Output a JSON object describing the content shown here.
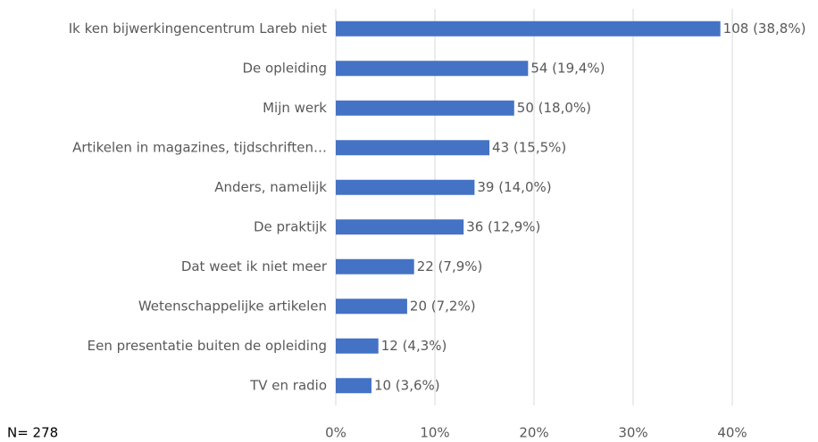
{
  "chart_data": {
    "type": "bar",
    "orientation": "horizontal",
    "categories": [
      "Ik ken bijwerkingencentrum Lareb niet",
      "De opleiding",
      "Mijn werk",
      "Artikelen in magazines, tijdschriften…",
      "Anders, namelijk",
      "De praktijk",
      "Dat weet ik niet meer",
      "Wetenschappelijke artikelen",
      "Een presentatie buiten de opleiding",
      "TV en radio"
    ],
    "values": [
      38.8,
      19.4,
      18.0,
      15.5,
      14.0,
      12.9,
      7.9,
      7.2,
      4.3,
      3.6
    ],
    "value_labels": [
      "108 (38,8%)",
      "54 (19,4%)",
      "50 (18,0%)",
      "43 (15,5%)",
      "39 (14,0%)",
      "36 (12,9%)",
      "22 (7,9%)",
      "20 (7,2%)",
      "12 (4,3%)",
      "10 (3,6%)"
    ],
    "color": "#4472c4",
    "xlim": [
      0,
      40
    ],
    "xticks": [
      {
        "value": 0,
        "label": "0%"
      },
      {
        "value": 10,
        "label": "10%"
      },
      {
        "value": 20,
        "label": "20%"
      },
      {
        "value": 30,
        "label": "30%"
      },
      {
        "value": 40,
        "label": "40%"
      }
    ],
    "grid": true,
    "annotation": "N= 278"
  }
}
